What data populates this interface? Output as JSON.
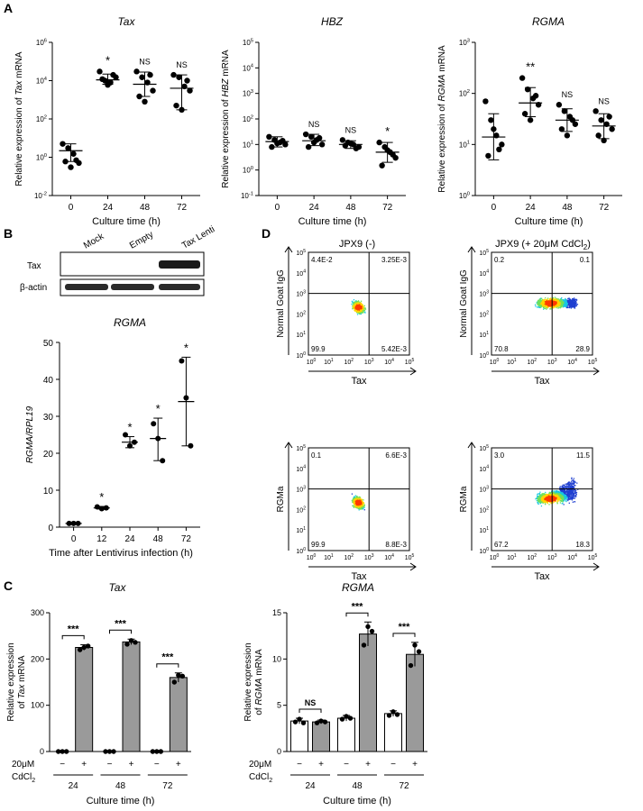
{
  "panel_labels": [
    "A",
    "B",
    "C",
    "D"
  ],
  "chart_data": [
    {
      "panel": "A",
      "type": "scatter",
      "title": "Tax",
      "xlabel": "Culture time (h)",
      "ylabel_pre": "Relative expression of ",
      "ylabel_gene": "Tax",
      "ylabel_post": " mRNA",
      "yscale": "log",
      "ylim_exp": [
        -2,
        6
      ],
      "ytick_labels": [
        "10-2",
        "100",
        "102",
        "104",
        "106"
      ],
      "categories": [
        "0",
        "24",
        "48",
        "72"
      ],
      "groups": [
        {
          "x": "0",
          "points": [
            5,
            3,
            1.5,
            0.5,
            0.6,
            0.3,
            0.7
          ],
          "mean": 2.2,
          "lo": 0.6,
          "hi": 5,
          "sig": ""
        },
        {
          "x": "24",
          "points": [
            30000,
            10000,
            8000,
            15000,
            12000,
            6000,
            20000
          ],
          "mean": 11000,
          "lo": 6500,
          "hi": 22000,
          "sig": "*"
        },
        {
          "x": "48",
          "points": [
            30000,
            15000,
            8000,
            3000,
            1500,
            800,
            20000
          ],
          "mean": 6500,
          "lo": 1500,
          "hi": 28000,
          "sig": "NS"
        },
        {
          "x": "72",
          "points": [
            20000,
            15000,
            5000,
            3000,
            500,
            300,
            10000
          ],
          "mean": 4000,
          "lo": 300,
          "hi": 20000,
          "sig": "NS"
        }
      ]
    },
    {
      "panel": "A",
      "type": "scatter",
      "title": "HBZ",
      "xlabel": "Culture time (h)",
      "ylabel_pre": "Relative expression of ",
      "ylabel_gene": "HBZ",
      "ylabel_post": " mRNA",
      "yscale": "log",
      "ylim_exp": [
        -1,
        5
      ],
      "ytick_labels": [
        "10-1",
        "100",
        "101",
        "102",
        "103",
        "104",
        "105"
      ],
      "categories": [
        "0",
        "24",
        "48",
        "72"
      ],
      "groups": [
        {
          "x": "0",
          "points": [
            20,
            15,
            12,
            10,
            8,
            11,
            14
          ],
          "mean": 13,
          "lo": 8,
          "hi": 20,
          "sig": ""
        },
        {
          "x": "24",
          "points": [
            25,
            20,
            15,
            10,
            8,
            12,
            18
          ],
          "mean": 14,
          "lo": 9,
          "hi": 25,
          "sig": "NS"
        },
        {
          "x": "48",
          "points": [
            15,
            12,
            10,
            8,
            9,
            11,
            7
          ],
          "mean": 10,
          "lo": 7,
          "hi": 14,
          "sig": "NS"
        },
        {
          "x": "72",
          "points": [
            12,
            8,
            5,
            3,
            1.5,
            6,
            4
          ],
          "mean": 5,
          "lo": 2,
          "hi": 12,
          "sig": "*"
        }
      ]
    },
    {
      "panel": "A",
      "type": "scatter",
      "title": "RGMA",
      "xlabel": "Culture time (h)",
      "ylabel_pre": "Relative expression of ",
      "ylabel_gene": "RGMA",
      "ylabel_post": " mRNA",
      "yscale": "log",
      "ylim_exp": [
        0,
        3
      ],
      "ytick_labels": [
        "100",
        "101",
        "102",
        "103"
      ],
      "categories": [
        "0",
        "24",
        "48",
        "72"
      ],
      "groups": [
        {
          "x": "0",
          "points": [
            70,
            30,
            15,
            10,
            6,
            20,
            8
          ],
          "mean": 14,
          "lo": 5,
          "hi": 40,
          "sig": ""
        },
        {
          "x": "24",
          "points": [
            200,
            120,
            80,
            60,
            40,
            30,
            90
          ],
          "mean": 65,
          "lo": 35,
          "hi": 130,
          "sig": "**"
        },
        {
          "x": "48",
          "points": [
            60,
            45,
            35,
            25,
            20,
            15,
            30
          ],
          "mean": 30,
          "lo": 18,
          "hi": 50,
          "sig": "NS"
        },
        {
          "x": "72",
          "points": [
            45,
            30,
            25,
            20,
            15,
            12,
            35
          ],
          "mean": 23,
          "lo": 13,
          "hi": 40,
          "sig": "NS"
        }
      ]
    },
    {
      "panel": "B",
      "type": "scatter",
      "title": "RGMA",
      "xlabel": "Time after Lentivirus infection (h)",
      "ylabel": "RGMA/RPL19",
      "ylim": [
        0,
        50
      ],
      "categories": [
        "0",
        "12",
        "24",
        "48",
        "72"
      ],
      "groups": [
        {
          "x": "0",
          "points": [
            1,
            1,
            1
          ],
          "mean": 1,
          "lo": 0.9,
          "hi": 1.1,
          "sig": ""
        },
        {
          "x": "12",
          "points": [
            5.5,
            5,
            5.2
          ],
          "mean": 5.2,
          "lo": 4.9,
          "hi": 5.6,
          "sig": "*"
        },
        {
          "x": "24",
          "points": [
            25,
            22,
            23
          ],
          "mean": 23,
          "lo": 21.5,
          "hi": 24.5,
          "sig": "*"
        },
        {
          "x": "48",
          "points": [
            28,
            24,
            18
          ],
          "mean": 24,
          "lo": 18,
          "hi": 29.5,
          "sig": "*"
        },
        {
          "x": "72",
          "points": [
            45,
            35,
            22
          ],
          "mean": 34,
          "lo": 22,
          "hi": 46,
          "sig": "*"
        }
      ]
    },
    {
      "panel": "C",
      "type": "bar",
      "title": "Tax",
      "xlabel": "Culture time (h)",
      "ylabel_lines": [
        "Relative expression",
        "of Tax mRNA"
      ],
      "ylim": [
        0,
        300
      ],
      "yticks": [
        0,
        100,
        200,
        300
      ],
      "row_label_top": "20μM",
      "row_label_bottom": "CdCl2",
      "plus_label": "+",
      "minus_label": "−",
      "categories": [
        "24",
        "48",
        "72"
      ],
      "series": [
        {
          "name": "−",
          "values": [
            0,
            0,
            0
          ]
        },
        {
          "name": "+",
          "values": [
            225,
            237,
            160
          ]
        }
      ],
      "errors": [
        [
          0,
          0,
          0
        ],
        [
          6,
          6,
          10
        ]
      ],
      "dots": [
        [
          [
            0,
            0,
            0
          ],
          [
            0,
            0,
            0
          ],
          [
            0,
            0,
            0
          ]
        ],
        [
          [
            220,
            225,
            228
          ],
          [
            232,
            240,
            236
          ],
          [
            150,
            165,
            163
          ]
        ]
      ],
      "sig": [
        "***",
        "***",
        "***"
      ]
    },
    {
      "panel": "C",
      "type": "bar",
      "title": "RGMA",
      "xlabel": "Culture time (h)",
      "ylabel_lines": [
        "Relative expression",
        "of RGMA mRNA"
      ],
      "ylim": [
        0,
        15
      ],
      "yticks": [
        0,
        5,
        10,
        15
      ],
      "row_label_top": "20μM",
      "row_label_bottom": "CdCl2",
      "plus_label": "+",
      "minus_label": "−",
      "categories": [
        "24",
        "48",
        "72"
      ],
      "series": [
        {
          "name": "−",
          "values": [
            3.3,
            3.6,
            4.1
          ]
        },
        {
          "name": "+",
          "values": [
            3.2,
            12.7,
            10.5
          ]
        }
      ],
      "errors": [
        [
          0.3,
          0.3,
          0.3
        ],
        [
          0.2,
          1.3,
          1.3
        ]
      ],
      "dots": [
        [
          [
            3.2,
            3.5,
            3.1
          ],
          [
            3.5,
            3.8,
            3.6
          ],
          [
            3.9,
            4.3,
            4.0
          ]
        ],
        [
          [
            3.1,
            3.3,
            3.2
          ],
          [
            11.5,
            13.5,
            13.0
          ],
          [
            9.3,
            11.5,
            10.8
          ]
        ]
      ],
      "sig": [
        "NS",
        "***",
        "***"
      ]
    }
  ],
  "western_blot": {
    "lanes": [
      "Mock",
      "Empty",
      "Tax Lenti"
    ],
    "rows": [
      "Tax",
      "β-actin"
    ]
  },
  "flow_cytometry": {
    "column_titles": [
      "JPX9 (-)",
      "JPX9 (+ 20μM CdCl",
      "2",
      ")"
    ],
    "xlabel": "Tax",
    "tick_labels": [
      "100",
      "101",
      "102",
      "103",
      "104",
      "105"
    ],
    "plots": [
      {
        "ylabel": "Normal Goat IgG",
        "quadrants": [
          "4.4E-2",
          "3.25E-3",
          "99.9",
          "5.42E-3"
        ]
      },
      {
        "ylabel": "Normal Goat IgG",
        "quadrants": [
          "0.2",
          "0.1",
          "70.8",
          "28.9"
        ]
      },
      {
        "ylabel": "RGMa",
        "quadrants": [
          "0.1",
          "6.6E-3",
          "99.9",
          "8.8E-3"
        ]
      },
      {
        "ylabel": "RGMa",
        "quadrants": [
          "3.0",
          "11.5",
          "67.2",
          "18.3"
        ]
      }
    ]
  },
  "colors": {
    "bar_minus": "#ffffff",
    "bar_plus": "#9a9a9a",
    "ink": "#000000"
  }
}
